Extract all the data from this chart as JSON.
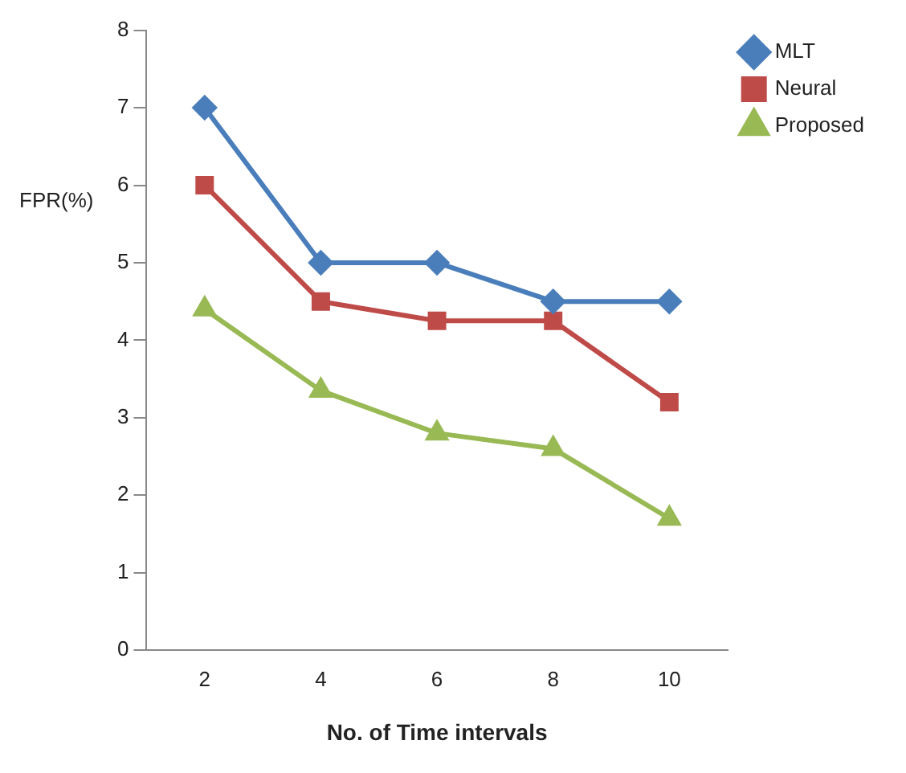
{
  "chart_data": {
    "type": "line",
    "xlabel": "No. of Time intervals",
    "ylabel": "FPR(%)",
    "categories": [
      "2",
      "4",
      "6",
      "8",
      "10"
    ],
    "series": [
      {
        "name": "MLT",
        "color": "#4a7ebb",
        "marker": "diamond",
        "values": [
          7,
          5,
          5,
          4.5,
          4.5
        ]
      },
      {
        "name": "Neural",
        "color": "#be4b48",
        "marker": "square",
        "values": [
          6,
          4.5,
          4.25,
          4.25,
          3.2
        ]
      },
      {
        "name": "Proposed",
        "color": "#98b954",
        "marker": "triangle",
        "values": [
          4.4,
          3.35,
          2.8,
          2.6,
          1.7
        ]
      }
    ],
    "ylim": [
      0,
      8
    ],
    "yticks": [
      0,
      1,
      2,
      3,
      4,
      5,
      6,
      7,
      8
    ],
    "grid": false,
    "legend": "top right",
    "line_style": "solid"
  }
}
